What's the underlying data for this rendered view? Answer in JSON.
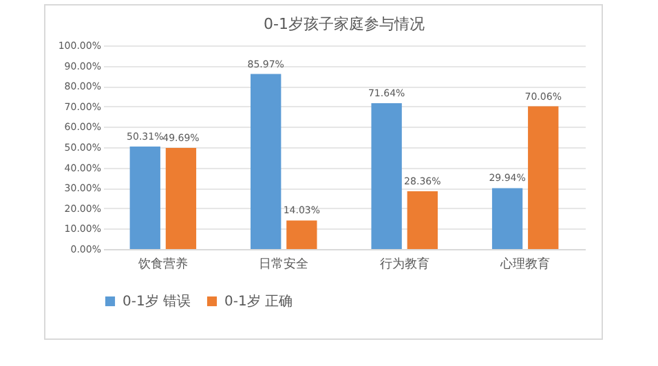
{
  "chart_data": {
    "type": "bar",
    "title": "0-1岁孩子家庭参与情况",
    "categories": [
      "饮食营养",
      "日常安全",
      "行为教育",
      "心理教育"
    ],
    "series": [
      {
        "name": "0-1岁 错误",
        "color": "#5b9bd5",
        "values": [
          50.31,
          85.97,
          71.64,
          29.94
        ],
        "value_labels": [
          "50.31%",
          "85.97%",
          "71.64%",
          "29.94%"
        ]
      },
      {
        "name": "0-1岁 正确",
        "color": "#ed7d31",
        "values": [
          49.69,
          14.03,
          28.36,
          70.06
        ],
        "value_labels": [
          "49.69%",
          "14.03%",
          "28.36%",
          "70.06%"
        ]
      }
    ],
    "ylim": [
      0,
      100
    ],
    "yticks": [
      {
        "value": 0,
        "label": "0.00%"
      },
      {
        "value": 10,
        "label": "10.00%"
      },
      {
        "value": 20,
        "label": "20.00%"
      },
      {
        "value": 30,
        "label": "30.00%"
      },
      {
        "value": 40,
        "label": "40.00%"
      },
      {
        "value": 50,
        "label": "50.00%"
      },
      {
        "value": 60,
        "label": "60.00%"
      },
      {
        "value": 70,
        "label": "70.00%"
      },
      {
        "value": 80,
        "label": "80.00%"
      },
      {
        "value": 90,
        "label": "90.00%"
      },
      {
        "value": 100,
        "label": "100.00%"
      }
    ],
    "grid": "y",
    "legend": "bottom"
  }
}
